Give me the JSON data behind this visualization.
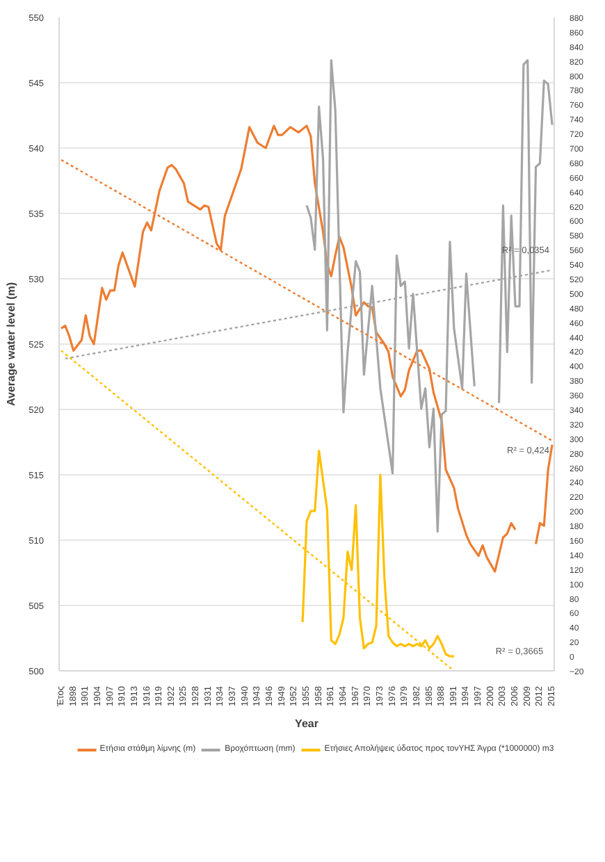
{
  "chart_data": {
    "type": "line",
    "xlabel": "Year",
    "ylabel": "Average water level (m)",
    "xlim": [
      1894.5,
      2015.5
    ],
    "ylim": [
      500,
      550
    ],
    "y2lim": [
      -20,
      880
    ],
    "xticks": [
      {
        "value": 1895,
        "label": "Έτος"
      },
      1898,
      1901,
      1904,
      1907,
      1910,
      1913,
      1916,
      1919,
      1922,
      1925,
      1928,
      1931,
      1934,
      1937,
      1940,
      1943,
      1946,
      1949,
      1952,
      1955,
      1958,
      1961,
      1964,
      1967,
      1970,
      1973,
      1976,
      1979,
      1982,
      1985,
      1988,
      1991,
      1994,
      1997,
      2000,
      2003,
      2006,
      2009,
      2012,
      2015
    ],
    "yticks": [
      500,
      505,
      510,
      515,
      520,
      525,
      530,
      535,
      540,
      545,
      550
    ],
    "y2ticks": [
      -20,
      0,
      20,
      40,
      60,
      80,
      100,
      120,
      140,
      160,
      180,
      200,
      220,
      240,
      260,
      280,
      300,
      320,
      340,
      360,
      380,
      400,
      420,
      440,
      460,
      480,
      500,
      520,
      540,
      560,
      580,
      600,
      620,
      640,
      660,
      680,
      700,
      720,
      740,
      760,
      780,
      800,
      820,
      840,
      860,
      880
    ],
    "grid": "y",
    "legend": "bottom",
    "line_style": "solid",
    "series": [
      {
        "name": "Ετήσια στάθμη λίμνης (m)",
        "color": "#ed7d31",
        "x": [
          1895,
          1896,
          1897,
          1898,
          1900,
          1901,
          1902,
          1903,
          1905,
          1906,
          1907,
          1908,
          1909,
          1910,
          1913,
          1915,
          1916,
          1917,
          1919,
          1921,
          1922,
          1923,
          1925,
          1926,
          1929,
          1930,
          1931,
          1933,
          1934,
          1935,
          1938,
          1939,
          1941,
          1943,
          1945,
          1947,
          1948,
          1949,
          1951,
          1953,
          1955,
          1956,
          1957,
          1959,
          1960,
          1961,
          1962,
          1963,
          1964,
          1966,
          1967,
          1969,
          1970,
          1971,
          1972,
          1974,
          1975,
          1976,
          1978,
          1979,
          1980,
          1982,
          1983,
          1985,
          1986,
          1988,
          1989,
          1991,
          1992,
          1994,
          1995,
          1997,
          1998,
          1999,
          2001,
          2003,
          2004,
          2005,
          2006,
          2007,
          2011,
          2012,
          2013,
          2014,
          2015
        ],
        "values": [
          526.2,
          526.4,
          525.6,
          524.5,
          525.3,
          527.2,
          525.6,
          525.0,
          529.3,
          528.4,
          529.1,
          529.1,
          531.0,
          532.0,
          529.4,
          533.6,
          534.3,
          533.7,
          536.7,
          538.5,
          538.7,
          538.4,
          537.3,
          535.9,
          535.3,
          535.6,
          535.5,
          532.7,
          532.2,
          534.8,
          537.5,
          538.4,
          541.6,
          540.4,
          540.0,
          541.7,
          541.0,
          541.0,
          541.6,
          541.2,
          541.7,
          540.9,
          537.3,
          533.6,
          531.1,
          530.2,
          531.8,
          533.2,
          532.4,
          529.3,
          527.2,
          528.2,
          527.9,
          527.8,
          525.9,
          525.0,
          524.4,
          522.5,
          521.0,
          521.5,
          523.0,
          524.5,
          524.5,
          523.1,
          521.3,
          519.1,
          515.4,
          514.0,
          512.4,
          510.4,
          509.7,
          508.8,
          509.6,
          508.7,
          507.6,
          510.2,
          510.5,
          511.3,
          510.8,
          null,
          509.7,
          511.3,
          511.1,
          515.4,
          517.3
        ]
      },
      {
        "name": "Βροχόπτωση (mm)",
        "color": "#a5a5a5",
        "axis": "y2",
        "x": [
          1955,
          1956,
          1957,
          1958,
          1959,
          1960,
          1961,
          1962,
          1964,
          1965,
          1967,
          1968,
          1969,
          1971,
          1973,
          1976,
          1977,
          1978,
          1979,
          1980,
          1981,
          1983,
          1984,
          1985,
          1986,
          1987,
          1988,
          1989,
          1990,
          1991,
          1993,
          1994,
          1996,
          1997,
          2002,
          2003,
          2004,
          2005,
          2006,
          2007,
          2008,
          2009,
          2010,
          2011,
          2012,
          2013,
          2014,
          2015
        ],
        "values": [
          621,
          604,
          560,
          757,
          685,
          449,
          821,
          752,
          336,
          419,
          544,
          530,
          388,
          510,
          369,
          252,
          552,
          510,
          516,
          424,
          499,
          341,
          369,
          288,
          341,
          172,
          333,
          338,
          571,
          452,
          369,
          527,
          372,
          null,
          349,
          621,
          419,
          607,
          482,
          482,
          815,
          821,
          377,
          674,
          679,
          793,
          788,
          732
        ]
      },
      {
        "name": "Ετήσιες Απολήψεις ύδατος προς τονΥΗΣ Άγρα (*1000000) m3",
        "color": "#ffc000",
        "axis": "y2",
        "x": [
          1954,
          1955,
          1956,
          1957,
          1958,
          1960,
          1961,
          1962,
          1963,
          1964,
          1965,
          1966,
          1967,
          1968,
          1969,
          1970,
          1971,
          1972,
          1973,
          1974,
          1975,
          1976,
          1977,
          1978,
          1979,
          1980,
          1981,
          1982,
          1983,
          1984,
          1985,
          1986,
          1987,
          1988,
          1989,
          1990,
          1991
        ],
        "values": [
          47,
          186,
          200,
          200,
          283,
          202,
          22,
          17,
          30,
          53,
          144,
          119,
          208,
          53,
          11,
          17,
          19,
          42,
          250,
          108,
          28,
          19,
          14,
          17,
          14,
          17,
          14,
          17,
          14,
          22,
          11,
          17,
          28,
          17,
          3,
          0,
          0
        ]
      },
      {
        "color": "#ed7d31",
        "line_style": "dotted",
        "x": [
          1895,
          2015
        ],
        "values": [
          539.1,
          517.6
        ]
      },
      {
        "color": "#a5a5a5",
        "line_style": "dotted",
        "axis": "y2",
        "x": [
          1896,
          2015
        ],
        "values": [
          410,
          532
        ]
      },
      {
        "color": "#ffc000",
        "line_style": "dotted",
        "axis": "y2",
        "x": [
          1895,
          1991
        ],
        "values": [
          421,
          -20
        ]
      }
    ],
    "annotations": [
      "R² = 0,424",
      "R² = 0,0354",
      "R² = 0,3665"
    ]
  }
}
